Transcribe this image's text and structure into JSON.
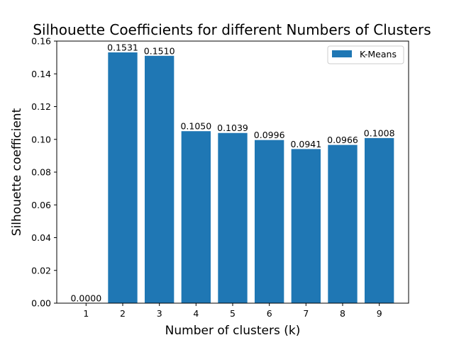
{
  "chart_data": {
    "type": "bar",
    "title": "Silhouette Coefficients for different Numbers of Clusters",
    "xlabel": "Number of clusters (k)",
    "ylabel": "Silhouette coefficient",
    "categories": [
      "1",
      "2",
      "3",
      "4",
      "5",
      "6",
      "7",
      "8",
      "9"
    ],
    "values": [
      0.0,
      0.1531,
      0.151,
      0.105,
      0.1039,
      0.0996,
      0.0941,
      0.0966,
      0.1008
    ],
    "value_labels": [
      "0.0000",
      "0.1531",
      "0.1510",
      "0.1050",
      "0.1039",
      "0.0996",
      "0.0941",
      "0.0966",
      "0.1008"
    ],
    "ylim": [
      0,
      0.16
    ],
    "yticks": [
      0.0,
      0.02,
      0.04,
      0.06,
      0.08,
      0.1,
      0.12,
      0.14,
      0.16
    ],
    "ytick_labels": [
      "0.00",
      "0.02",
      "0.04",
      "0.06",
      "0.08",
      "0.10",
      "0.12",
      "0.14",
      "0.16"
    ],
    "series": [
      {
        "name": "K-Means",
        "color": "#1f77b4"
      }
    ],
    "legend": {
      "placement": "top-right"
    },
    "grid": false
  }
}
